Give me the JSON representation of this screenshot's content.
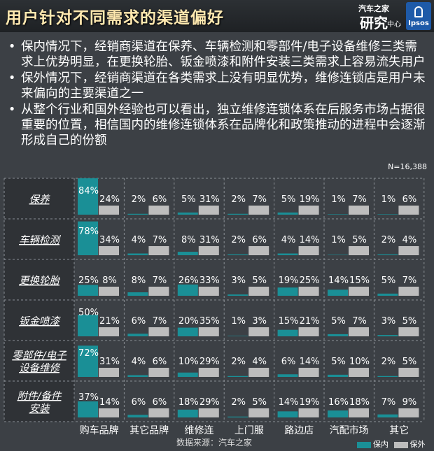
{
  "title": "用户针对不同需求的渠道偏好",
  "logos": {
    "brand_line1": "汽车之家",
    "brand_line2": "研究",
    "brand_line3": "中心",
    "partner": "Ipsos"
  },
  "bullets": [
    "保内情况下，经销商渠道在保养、车辆检测和零部件/电子设备维修三类需求上优势明显，在更换轮胎、钣金喷漆和附件安装三类需求上容易流失用户",
    "保外情况下，经销商渠道在各类需求上没有明显优势，维修连锁店是用户未来偏向的主要渠道之一",
    "从整个行业和国外经验也可以看出，独立维修连锁体系在后服务市场占据很重要的位置，相信国内的维修连锁体系在品牌化和政策推动的进程中会逐渐形成自己的份额"
  ],
  "bullet_symbol": "•",
  "sample_size": "N=16,388",
  "source": "数据来源：汽车之家",
  "legend": [
    {
      "label": "保内",
      "color": "#1a8f96"
    },
    {
      "label": "保外",
      "color": "#bdbdbd"
    }
  ],
  "chart_data": {
    "type": "bar",
    "rows": [
      "保养",
      "车辆检测",
      "更换轮胎",
      "钣金喷漆",
      "零部件/电子设备维修",
      "附件/备件安装"
    ],
    "row_label_lines": [
      [
        "保养"
      ],
      [
        "车辆检测"
      ],
      [
        "更换轮胎"
      ],
      [
        "钣金喷漆"
      ],
      [
        "零部件/电子",
        "设备维修"
      ],
      [
        "附件/备件",
        "安装"
      ]
    ],
    "columns": [
      "购车品牌授经销商",
      "其它品牌经销商",
      "维修连锁店",
      "上门服务商",
      "路边店",
      "汽配市场",
      "其它"
    ],
    "column_label_lines": [
      [
        "购车品牌",
        "授经销商"
      ],
      [
        "其它品牌",
        "经销商"
      ],
      [
        "维修连",
        "锁店"
      ],
      [
        "上门服",
        "务商"
      ],
      [
        "路边店"
      ],
      [
        "汽配市场"
      ],
      [
        "其它"
      ]
    ],
    "series": [
      {
        "name": "保内",
        "color": "#1a8f96",
        "values": [
          [
            84,
            2,
            5,
            2,
            5,
            1,
            1
          ],
          [
            78,
            4,
            8,
            2,
            4,
            1,
            2
          ],
          [
            25,
            8,
            26,
            3,
            19,
            14,
            5
          ],
          [
            50,
            6,
            20,
            1,
            15,
            5,
            3
          ],
          [
            72,
            4,
            10,
            2,
            6,
            5,
            2
          ],
          [
            37,
            6,
            18,
            2,
            14,
            16,
            7
          ]
        ]
      },
      {
        "name": "保外",
        "color": "#bdbdbd",
        "values": [
          [
            24,
            6,
            31,
            7,
            19,
            7,
            6
          ],
          [
            34,
            7,
            31,
            6,
            14,
            5,
            4
          ],
          [
            8,
            7,
            33,
            5,
            25,
            15,
            7
          ],
          [
            21,
            7,
            35,
            3,
            21,
            7,
            5
          ],
          [
            31,
            6,
            29,
            4,
            14,
            10,
            5
          ],
          [
            14,
            6,
            29,
            5,
            19,
            18,
            9
          ]
        ]
      }
    ],
    "unit": "%",
    "ylim": [
      0,
      100
    ]
  }
}
